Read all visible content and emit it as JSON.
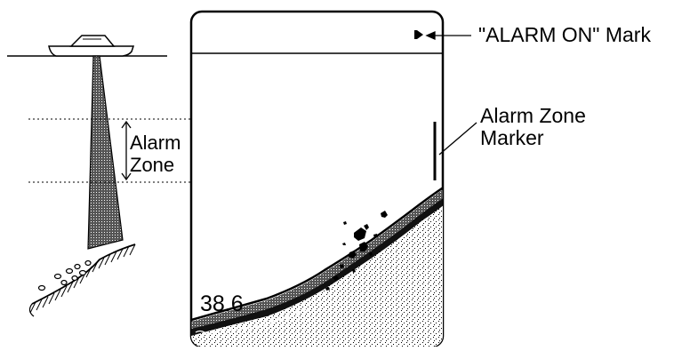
{
  "labels": {
    "alarm_on_mark": "\"ALARM ON\" Mark",
    "alarm_zone_marker_line1": "Alarm Zone",
    "alarm_zone_marker_line2": "Marker",
    "alarm_zone_line1": "Alarm",
    "alarm_zone_line2": "Zone"
  },
  "screen": {
    "depth_readout": "38.6"
  }
}
